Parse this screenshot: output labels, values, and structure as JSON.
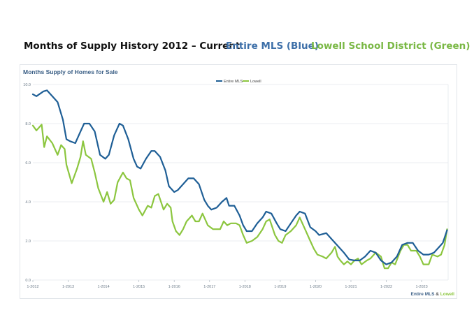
{
  "header": {
    "title": "Months of Supply History 2012 – Current",
    "blue_label": "Entire MLS (Blue)",
    "green_label": "Lowell School District (Green)"
  },
  "colors": {
    "blue": "#1f5f96",
    "green": "#8cc63f",
    "grid": "#e4e8ec",
    "title_text": "#3b5f86"
  },
  "chart_data": {
    "type": "line",
    "title": "Months Supply of Homes for Sale",
    "ylim": [
      0,
      10
    ],
    "yticks": [
      "0.0",
      "2.0",
      "4.0",
      "6.0",
      "8.0",
      "10.0"
    ],
    "xlim": [
      2012,
      2023.75
    ],
    "xticks": [
      "1-2012",
      "1-2013",
      "1-2014",
      "1-2015",
      "1-2016",
      "1-2017",
      "1-2018",
      "1-2019",
      "1-2020",
      "1-2021",
      "1-2022",
      "1-2023"
    ],
    "grid": true,
    "legend_position": "top-center",
    "credit": {
      "part1": "Entire MLS",
      "sep": " & ",
      "part2": "Lowell"
    },
    "series": [
      {
        "name": "Entire MLS",
        "color": "#1f5f96",
        "points": [
          [
            2012.0,
            9.5
          ],
          [
            2012.1,
            9.4
          ],
          [
            2012.3,
            9.65
          ],
          [
            2012.4,
            9.7
          ],
          [
            2012.55,
            9.4
          ],
          [
            2012.7,
            9.1
          ],
          [
            2012.85,
            8.2
          ],
          [
            2012.95,
            7.2
          ],
          [
            2013.05,
            7.1
          ],
          [
            2013.2,
            7.0
          ],
          [
            2013.35,
            7.6
          ],
          [
            2013.45,
            8.0
          ],
          [
            2013.6,
            8.0
          ],
          [
            2013.75,
            7.6
          ],
          [
            2013.9,
            6.4
          ],
          [
            2014.05,
            6.2
          ],
          [
            2014.15,
            6.4
          ],
          [
            2014.3,
            7.4
          ],
          [
            2014.45,
            8.0
          ],
          [
            2014.55,
            7.9
          ],
          [
            2014.7,
            7.2
          ],
          [
            2014.85,
            6.2
          ],
          [
            2014.95,
            5.8
          ],
          [
            2015.05,
            5.7
          ],
          [
            2015.2,
            6.2
          ],
          [
            2015.35,
            6.6
          ],
          [
            2015.45,
            6.6
          ],
          [
            2015.6,
            6.3
          ],
          [
            2015.75,
            5.6
          ],
          [
            2015.85,
            4.8
          ],
          [
            2016.0,
            4.5
          ],
          [
            2016.1,
            4.6
          ],
          [
            2016.25,
            4.9
          ],
          [
            2016.4,
            5.2
          ],
          [
            2016.55,
            5.2
          ],
          [
            2016.7,
            4.9
          ],
          [
            2016.85,
            4.1
          ],
          [
            2016.95,
            3.8
          ],
          [
            2017.05,
            3.6
          ],
          [
            2017.2,
            3.7
          ],
          [
            2017.35,
            4.0
          ],
          [
            2017.48,
            4.2
          ],
          [
            2017.55,
            3.8
          ],
          [
            2017.7,
            3.8
          ],
          [
            2017.85,
            3.3
          ],
          [
            2017.95,
            2.8
          ],
          [
            2018.05,
            2.5
          ],
          [
            2018.2,
            2.5
          ],
          [
            2018.35,
            2.9
          ],
          [
            2018.5,
            3.2
          ],
          [
            2018.6,
            3.5
          ],
          [
            2018.75,
            3.4
          ],
          [
            2018.9,
            2.9
          ],
          [
            2019.0,
            2.6
          ],
          [
            2019.15,
            2.5
          ],
          [
            2019.3,
            2.9
          ],
          [
            2019.45,
            3.3
          ],
          [
            2019.55,
            3.5
          ],
          [
            2019.7,
            3.4
          ],
          [
            2019.85,
            2.7
          ],
          [
            2020.0,
            2.5
          ],
          [
            2020.1,
            2.3
          ],
          [
            2020.3,
            2.4
          ],
          [
            2020.45,
            2.1
          ],
          [
            2020.6,
            1.8
          ],
          [
            2020.8,
            1.4
          ],
          [
            2020.95,
            1.05
          ],
          [
            2021.1,
            1.0
          ],
          [
            2021.25,
            1.0
          ],
          [
            2021.4,
            1.2
          ],
          [
            2021.55,
            1.5
          ],
          [
            2021.7,
            1.4
          ],
          [
            2021.85,
            1.0
          ],
          [
            2022.0,
            0.8
          ],
          [
            2022.15,
            0.9
          ],
          [
            2022.3,
            1.2
          ],
          [
            2022.45,
            1.8
          ],
          [
            2022.6,
            1.9
          ],
          [
            2022.75,
            1.9
          ],
          [
            2022.9,
            1.5
          ],
          [
            2023.05,
            1.3
          ],
          [
            2023.2,
            1.3
          ],
          [
            2023.35,
            1.4
          ],
          [
            2023.5,
            1.7
          ],
          [
            2023.6,
            1.9
          ],
          [
            2023.72,
            2.55
          ]
        ]
      },
      {
        "name": "Lowell",
        "color": "#8cc63f",
        "points": [
          [
            2012.0,
            7.9
          ],
          [
            2012.1,
            7.65
          ],
          [
            2012.25,
            7.95
          ],
          [
            2012.32,
            6.8
          ],
          [
            2012.4,
            7.35
          ],
          [
            2012.55,
            7.0
          ],
          [
            2012.7,
            6.4
          ],
          [
            2012.8,
            6.9
          ],
          [
            2012.9,
            6.7
          ],
          [
            2012.95,
            5.9
          ],
          [
            2013.1,
            4.95
          ],
          [
            2013.25,
            5.7
          ],
          [
            2013.35,
            6.3
          ],
          [
            2013.42,
            7.1
          ],
          [
            2013.5,
            6.4
          ],
          [
            2013.65,
            6.2
          ],
          [
            2013.75,
            5.5
          ],
          [
            2013.85,
            4.7
          ],
          [
            2014.0,
            4.0
          ],
          [
            2014.1,
            4.5
          ],
          [
            2014.2,
            3.9
          ],
          [
            2014.3,
            4.1
          ],
          [
            2014.4,
            5.0
          ],
          [
            2014.55,
            5.5
          ],
          [
            2014.65,
            5.2
          ],
          [
            2014.75,
            5.1
          ],
          [
            2014.85,
            4.2
          ],
          [
            2015.0,
            3.6
          ],
          [
            2015.1,
            3.3
          ],
          [
            2015.25,
            3.8
          ],
          [
            2015.35,
            3.7
          ],
          [
            2015.45,
            4.3
          ],
          [
            2015.55,
            4.4
          ],
          [
            2015.7,
            3.6
          ],
          [
            2015.8,
            3.9
          ],
          [
            2015.9,
            3.7
          ],
          [
            2015.95,
            3.0
          ],
          [
            2016.05,
            2.5
          ],
          [
            2016.15,
            2.3
          ],
          [
            2016.25,
            2.6
          ],
          [
            2016.35,
            3.0
          ],
          [
            2016.5,
            3.3
          ],
          [
            2016.6,
            3.0
          ],
          [
            2016.7,
            3.0
          ],
          [
            2016.8,
            3.4
          ],
          [
            2016.95,
            2.8
          ],
          [
            2017.1,
            2.6
          ],
          [
            2017.3,
            2.6
          ],
          [
            2017.4,
            3.0
          ],
          [
            2017.5,
            2.8
          ],
          [
            2017.6,
            2.9
          ],
          [
            2017.75,
            2.9
          ],
          [
            2017.85,
            2.8
          ],
          [
            2017.95,
            2.3
          ],
          [
            2018.05,
            1.9
          ],
          [
            2018.2,
            2.0
          ],
          [
            2018.35,
            2.2
          ],
          [
            2018.5,
            2.6
          ],
          [
            2018.6,
            3.0
          ],
          [
            2018.7,
            3.1
          ],
          [
            2018.85,
            2.3
          ],
          [
            2018.95,
            2.0
          ],
          [
            2019.05,
            1.9
          ],
          [
            2019.15,
            2.3
          ],
          [
            2019.3,
            2.5
          ],
          [
            2019.45,
            2.8
          ],
          [
            2019.55,
            3.2
          ],
          [
            2019.7,
            2.6
          ],
          [
            2019.85,
            2.0
          ],
          [
            2019.95,
            1.6
          ],
          [
            2020.05,
            1.3
          ],
          [
            2020.2,
            1.2
          ],
          [
            2020.3,
            1.1
          ],
          [
            2020.45,
            1.4
          ],
          [
            2020.55,
            1.7
          ],
          [
            2020.62,
            1.2
          ],
          [
            2020.7,
            1.0
          ],
          [
            2020.8,
            0.8
          ],
          [
            2020.9,
            0.95
          ],
          [
            2021.0,
            0.8
          ],
          [
            2021.1,
            1.0
          ],
          [
            2021.2,
            1.1
          ],
          [
            2021.3,
            0.8
          ],
          [
            2021.45,
            1.0
          ],
          [
            2021.55,
            1.1
          ],
          [
            2021.7,
            1.4
          ],
          [
            2021.85,
            1.2
          ],
          [
            2021.95,
            0.6
          ],
          [
            2022.05,
            0.6
          ],
          [
            2022.15,
            0.9
          ],
          [
            2022.25,
            0.8
          ],
          [
            2022.4,
            1.5
          ],
          [
            2022.5,
            1.8
          ],
          [
            2022.6,
            1.8
          ],
          [
            2022.7,
            1.5
          ],
          [
            2022.85,
            1.5
          ],
          [
            2022.95,
            1.2
          ],
          [
            2023.05,
            0.8
          ],
          [
            2023.2,
            0.8
          ],
          [
            2023.3,
            1.3
          ],
          [
            2023.45,
            1.2
          ],
          [
            2023.55,
            1.3
          ],
          [
            2023.65,
            1.8
          ],
          [
            2023.72,
            2.6
          ]
        ]
      }
    ]
  }
}
